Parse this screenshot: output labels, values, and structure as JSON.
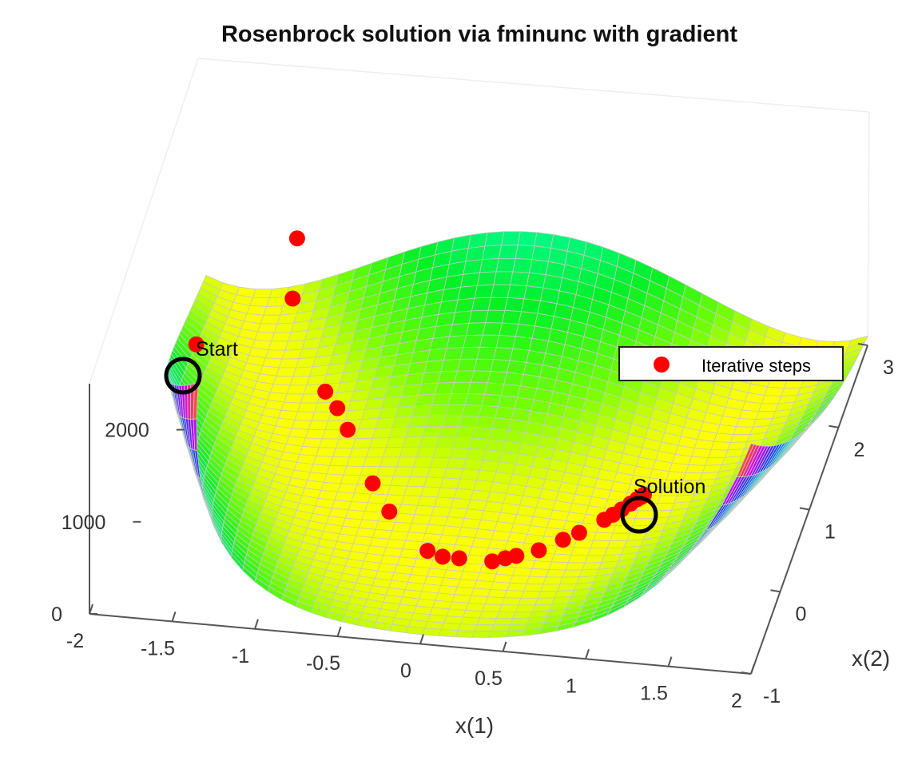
{
  "chart_data": {
    "type": "surface",
    "title": "Rosenbrock solution via fminunc with gradient",
    "xlabel": "x(1)",
    "ylabel": "x(2)",
    "zlabel": "",
    "xlim": [
      -2,
      2
    ],
    "ylim": [
      -1,
      3
    ],
    "zlim": [
      0,
      2500
    ],
    "x_ticks": [
      "-2",
      "-1.5",
      "-1",
      "-0.5",
      "0",
      "0.5",
      "1",
      "1.5",
      "2"
    ],
    "y_ticks": [
      "-1",
      "0",
      "1",
      "2",
      "3"
    ],
    "z_ticks": [
      "0",
      "1000",
      "2000"
    ],
    "grid": true,
    "colormap": [
      "#ffff00",
      "#aaff00",
      "#00ff00",
      "#00ffff",
      "#0000ff",
      "#ff00ff",
      "#ff0000"
    ],
    "legend": {
      "placement": "top-right",
      "entries": [
        "Iterative steps"
      ]
    },
    "annotations": [
      {
        "text": "Start",
        "x": -1.9,
        "y": 2,
        "z": 267
      },
      {
        "text": "Solution",
        "x": 1,
        "y": 1,
        "z": 0
      }
    ],
    "series": [
      {
        "name": "Iterative steps",
        "marker": "circle",
        "color": "#ff0000",
        "points": [
          {
            "x": -1.9,
            "y": 2.0,
            "z": 267.6
          },
          {
            "x": -1.45,
            "y": 3.0,
            "z": 600
          },
          {
            "x": -1.4,
            "y": 2.5,
            "z": 400
          },
          {
            "x": -1.05,
            "y": 1.6,
            "z": 250
          },
          {
            "x": -0.95,
            "y": 1.45,
            "z": 220
          },
          {
            "x": -0.85,
            "y": 1.25,
            "z": 180
          },
          {
            "x": -0.6,
            "y": 0.7,
            "z": 130
          },
          {
            "x": -0.45,
            "y": 0.45,
            "z": 70
          },
          {
            "x": -0.15,
            "y": 0.1,
            "z": 5
          },
          {
            "x": -0.05,
            "y": 0.05,
            "z": 2
          },
          {
            "x": 0.05,
            "y": 0.05,
            "z": 1
          },
          {
            "x": 0.25,
            "y": 0.05,
            "z": 1
          },
          {
            "x": 0.32,
            "y": 0.1,
            "z": 1
          },
          {
            "x": 0.38,
            "y": 0.14,
            "z": 1
          },
          {
            "x": 0.5,
            "y": 0.23,
            "z": 0.5
          },
          {
            "x": 0.62,
            "y": 0.38,
            "z": 0.3
          },
          {
            "x": 0.7,
            "y": 0.48,
            "z": 0.2
          },
          {
            "x": 0.82,
            "y": 0.66,
            "z": 0.1
          },
          {
            "x": 0.86,
            "y": 0.73,
            "z": 0.05
          },
          {
            "x": 0.9,
            "y": 0.8,
            "z": 0.03
          },
          {
            "x": 0.94,
            "y": 0.88,
            "z": 0.01
          },
          {
            "x": 0.97,
            "y": 0.94,
            "z": 0.0
          },
          {
            "x": 0.99,
            "y": 0.97,
            "z": 0.0
          },
          {
            "x": 1.0,
            "y": 1.0,
            "z": 0.0
          }
        ]
      }
    ]
  }
}
